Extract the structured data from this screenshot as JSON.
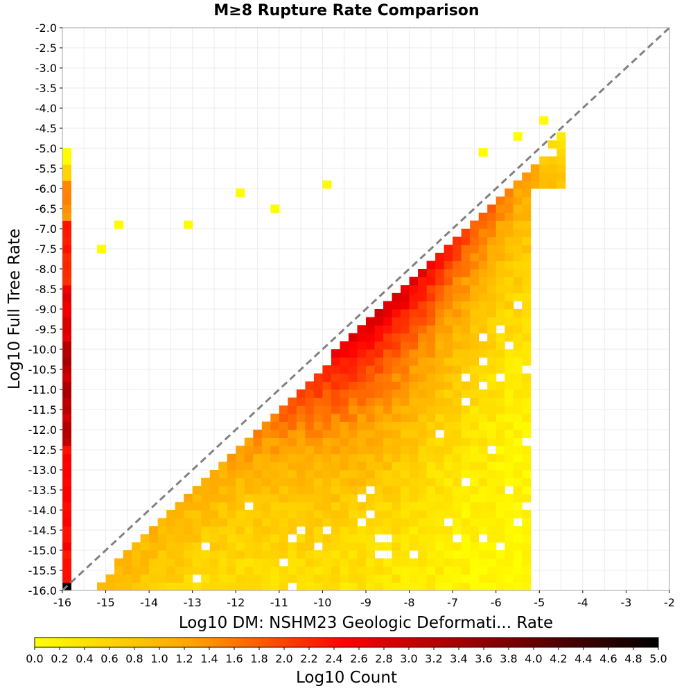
{
  "chart_data": {
    "type": "heatmap",
    "title": "M≥8 Rupture Rate Comparison",
    "xlabel": "Log10 DM: NSHM23 Geologic Deformati... Rate",
    "ylabel": "Log10 Full Tree Rate",
    "xlim": [
      -16,
      -2
    ],
    "ylim": [
      -16,
      -2
    ],
    "x_ticks": [
      "-16",
      "-15",
      "-14",
      "-13",
      "-12",
      "-11",
      "-10",
      "-9",
      "-8",
      "-7",
      "-6",
      "-5",
      "-4",
      "-3",
      "-2"
    ],
    "y_ticks": [
      "-2.0",
      "-2.5",
      "-3.0",
      "-3.5",
      "-4.0",
      "-4.5",
      "-5.0",
      "-5.5",
      "-6.0",
      "-6.5",
      "-7.0",
      "-7.5",
      "-8.0",
      "-8.5",
      "-9.0",
      "-9.5",
      "-10.0",
      "-10.5",
      "-11.0",
      "-11.5",
      "-12.0",
      "-12.5",
      "-13.0",
      "-13.5",
      "-14.0",
      "-14.5",
      "-15.0",
      "-15.5",
      "-16.0"
    ],
    "grid": true,
    "bin_size": 0.2,
    "reference_line": {
      "type": "y=x",
      "style": "dashed",
      "color": "#808080"
    },
    "colorbar": {
      "label": "Log10 Count",
      "range": [
        0,
        5
      ],
      "ticks": [
        "0.0",
        "0.2",
        "0.4",
        "0.6",
        "0.8",
        "1.0",
        "1.2",
        "1.4",
        "1.6",
        "1.8",
        "2.0",
        "2.2",
        "2.4",
        "2.6",
        "2.8",
        "3.0",
        "3.2",
        "3.4",
        "3.6",
        "3.8",
        "4.0",
        "4.2",
        "4.4",
        "4.6",
        "4.8",
        "5.0"
      ],
      "colors": [
        "#ffff00",
        "#ffa500",
        "#ff0000",
        "#800000",
        "#000000"
      ]
    },
    "distribution": {
      "description": "2D histogram of log10 rupture rates; upper bound along line y = 1.04x - 0.2 with densest ridge near x=-9..-8, y=-9..-8; boundary column at x=-16 spanning y=-16..-5",
      "peak_value": 5.0,
      "peak_cell": [
        -16,
        -16
      ]
    }
  }
}
